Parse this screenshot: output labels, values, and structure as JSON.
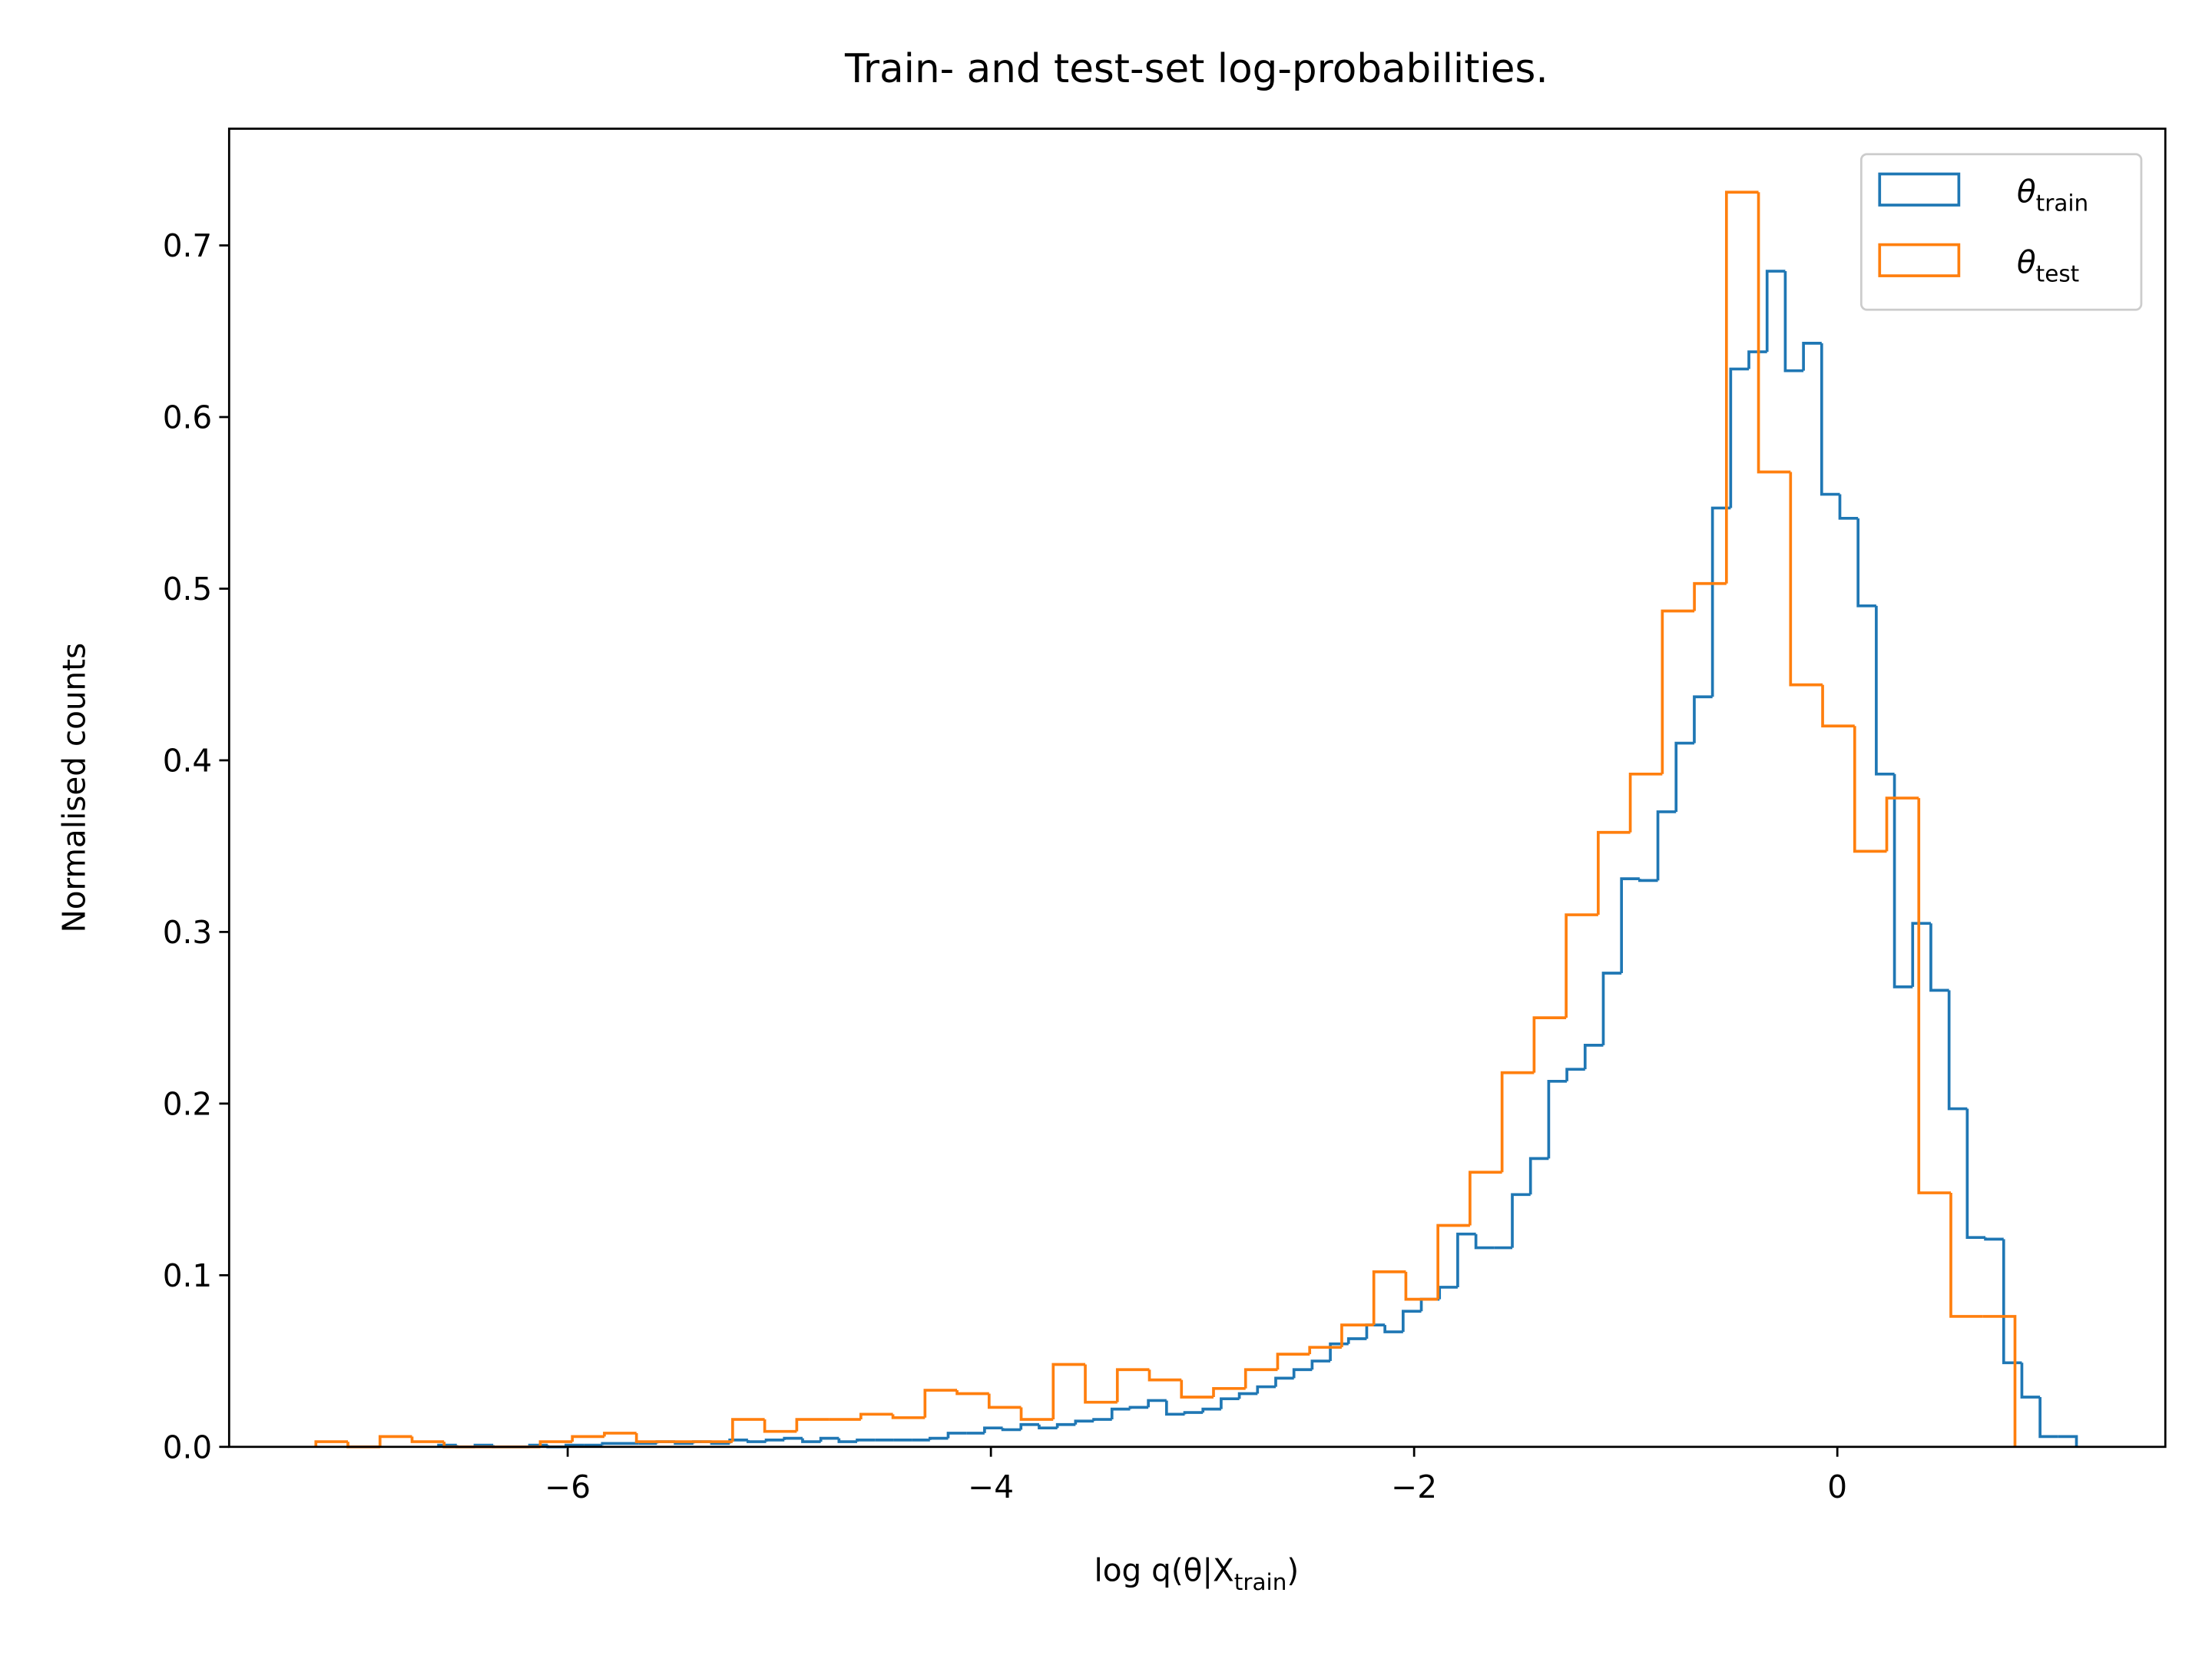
{
  "chart_data": {
    "type": "step-histogram",
    "title": "Train- and test-set log-probabilities.",
    "xlabel": [
      "log q(θ|X",
      "train",
      ")"
    ],
    "ylabel": "Normalised counts",
    "xlim": [
      -7.6,
      1.55
    ],
    "ylim": [
      0,
      0.768
    ],
    "xticks": [
      {
        "value": -6,
        "label": "−6"
      },
      {
        "value": -4,
        "label": "−4"
      },
      {
        "value": -2,
        "label": "−2"
      },
      0
    ],
    "yticks": [
      {
        "value": 0,
        "label": "0.0"
      },
      0.1,
      0.2,
      0.3,
      0.4,
      0.5,
      0.6,
      0.7
    ],
    "legend": "upper right",
    "series": [
      {
        "name": [
          "θ",
          "train"
        ],
        "color": "#1f77b4",
        "bins": [
          -6.61,
          -6.524,
          -6.438,
          -6.352,
          -6.266,
          -6.18,
          -6.094,
          -6.008,
          -5.922,
          -5.836,
          -5.75,
          -5.664,
          -5.578,
          -5.492,
          -5.406,
          -5.32,
          -5.234,
          -5.148,
          -5.062,
          -4.976,
          -4.89,
          -4.804,
          -4.718,
          -4.632,
          -4.546,
          -4.46,
          -4.374,
          -4.288,
          -4.202,
          -4.116,
          -4.03,
          -3.944,
          -3.858,
          -3.772,
          -3.686,
          -3.6,
          -3.514,
          -3.428,
          -3.342,
          -3.256,
          -3.17,
          -3.084,
          -2.998,
          -2.912,
          -2.826,
          -2.74,
          -2.654,
          -2.568,
          -2.482,
          -2.396,
          -2.31,
          -2.224,
          -2.138,
          -2.052,
          -1.966,
          -1.88,
          -1.794,
          -1.708,
          -1.622,
          -1.536,
          -1.45,
          -1.364,
          -1.278,
          -1.192,
          -1.106,
          -1.02,
          -0.934,
          -0.848,
          -0.762,
          -0.676,
          -0.59,
          -0.504,
          -0.418,
          -0.332,
          -0.246,
          -0.16,
          -0.074,
          0.012,
          0.098,
          0.184,
          0.27,
          0.356,
          0.442,
          0.528,
          0.614,
          0.7,
          0.786,
          0.872,
          0.958,
          1.044,
          1.13
        ],
        "values": [
          0.001,
          0,
          0.001,
          0,
          0,
          0.001,
          0,
          0.001,
          0.001,
          0.002,
          0.002,
          0.002,
          0.003,
          0.002,
          0.003,
          0.002,
          0.004,
          0.003,
          0.004,
          0.005,
          0.003,
          0.005,
          0.003,
          0.004,
          0.004,
          0.004,
          0.004,
          0.005,
          0.008,
          0.008,
          0.011,
          0.01,
          0.013,
          0.011,
          0.013,
          0.015,
          0.016,
          0.022,
          0.023,
          0.027,
          0.019,
          0.02,
          0.022,
          0.028,
          0.031,
          0.035,
          0.04,
          0.045,
          0.05,
          0.06,
          0.063,
          0.071,
          0.067,
          0.079,
          0.086,
          0.093,
          0.124,
          0.116,
          0.116,
          0.147,
          0.168,
          0.213,
          0.22,
          0.234,
          0.276,
          0.331,
          0.33,
          0.37,
          0.41,
          0.437,
          0.547,
          0.628,
          0.638,
          0.685,
          0.627,
          0.643,
          0.555,
          0.541,
          0.49,
          0.392,
          0.268,
          0.305,
          0.266,
          0.197,
          0.122,
          0.121,
          0.049,
          0.029,
          0.006,
          0.006
        ]
      },
      {
        "name": [
          "θ",
          "test"
        ],
        "color": "#ff7f0e",
        "bins": [
          -7.19,
          -7.0385,
          -6.887,
          -6.7355,
          -6.584,
          -6.4325,
          -6.281,
          -6.1295,
          -5.978,
          -5.8265,
          -5.675,
          -5.5235,
          -5.372,
          -5.2205,
          -5.069,
          -4.9175,
          -4.766,
          -4.6145,
          -4.463,
          -4.3115,
          -4.16,
          -4.0085,
          -3.857,
          -3.7055,
          -3.554,
          -3.4025,
          -3.251,
          -3.0995,
          -2.948,
          -2.7965,
          -2.645,
          -2.4935,
          -2.342,
          -2.1905,
          -2.039,
          -1.8875,
          -1.736,
          -1.5845,
          -1.433,
          -1.2815,
          -1.13,
          -0.9785,
          -0.827,
          -0.6755,
          -0.524,
          -0.3725,
          -0.221,
          -0.0695,
          0.082,
          0.2335,
          0.385,
          0.5365,
          0.688,
          0.8395
        ],
        "values": [
          0.003,
          0,
          0.006,
          0.003,
          0,
          0,
          0,
          0.003,
          0.006,
          0.008,
          0.003,
          0.003,
          0.003,
          0.016,
          0.009,
          0.016,
          0.016,
          0.019,
          0.017,
          0.033,
          0.031,
          0.023,
          0.016,
          0.048,
          0.026,
          0.045,
          0.039,
          0.029,
          0.034,
          0.045,
          0.054,
          0.058,
          0.071,
          0.102,
          0.086,
          0.129,
          0.16,
          0.218,
          0.25,
          0.31,
          0.358,
          0.392,
          0.487,
          0.503,
          0.731,
          0.568,
          0.444,
          0.42,
          0.347,
          0.378,
          0.148,
          0.076,
          0.076
        ]
      }
    ]
  }
}
